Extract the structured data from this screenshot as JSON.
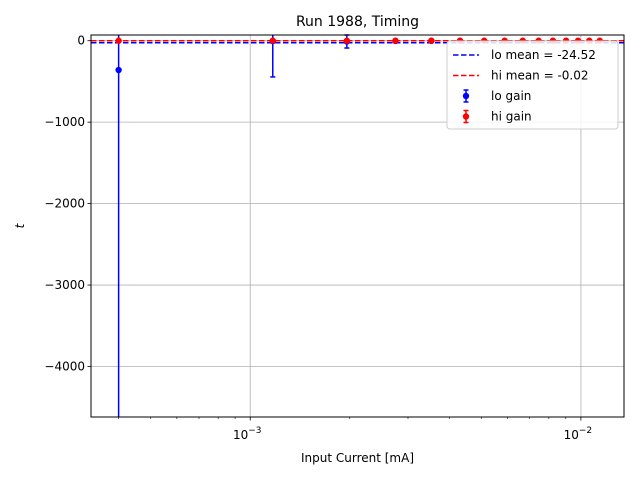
{
  "chart_data": {
    "type": "scatter",
    "title": "Run 1988, Timing",
    "xlabel": "Input Current [mA]",
    "ylabel": "t",
    "xscale": "log",
    "xlim": [
      0.00033,
      0.0135
    ],
    "ylim": [
      -4620,
      70
    ],
    "grid": true,
    "legend_position": "top-right",
    "x_ticks": [
      {
        "value": 0.001,
        "base": "10",
        "exp": "−3"
      },
      {
        "value": 0.01,
        "base": "10",
        "exp": "−2"
      }
    ],
    "y_ticks": [
      {
        "value": 0,
        "label": "0"
      },
      {
        "value": -1000,
        "label": "−1000"
      },
      {
        "value": -2000,
        "label": "−2000"
      },
      {
        "value": -3000,
        "label": "−3000"
      },
      {
        "value": -4000,
        "label": "−4000"
      }
    ],
    "hlines": [
      {
        "label": "lo mean = -24.52",
        "value": -24.52,
        "color": "#0000ff",
        "style": "dashed"
      },
      {
        "label": "hi mean = -0.02",
        "value": -0.02,
        "color": "#ff0000",
        "style": "dashed"
      }
    ],
    "series": [
      {
        "name": "lo gain",
        "color": "#0000ff",
        "points": [
          {
            "x": 0.0004,
            "y": -360,
            "err": 4600
          },
          {
            "x": 0.00117,
            "y": -5,
            "err": 440
          },
          {
            "x": 0.00196,
            "y": -10,
            "err": 80
          },
          {
            "x": 0.00275,
            "y": -3,
            "err": 10
          },
          {
            "x": 0.00353,
            "y": -2,
            "err": 5
          },
          {
            "x": 0.00431,
            "y": -1,
            "err": 3
          }
        ]
      },
      {
        "name": "hi gain",
        "color": "#ff0000",
        "points": [
          {
            "x": 0.0004,
            "y": 0,
            "err": 2
          },
          {
            "x": 0.00117,
            "y": 0,
            "err": 2
          },
          {
            "x": 0.00196,
            "y": 0,
            "err": 2
          },
          {
            "x": 0.00275,
            "y": 0,
            "err": 2
          },
          {
            "x": 0.00353,
            "y": 0,
            "err": 2
          },
          {
            "x": 0.00431,
            "y": 0,
            "err": 2
          },
          {
            "x": 0.0051,
            "y": 0,
            "err": 2
          },
          {
            "x": 0.00588,
            "y": 0,
            "err": 2
          },
          {
            "x": 0.00667,
            "y": 0,
            "err": 2
          },
          {
            "x": 0.00745,
            "y": 0,
            "err": 2
          },
          {
            "x": 0.00823,
            "y": 0,
            "err": 2
          },
          {
            "x": 0.00902,
            "y": 0,
            "err": 2
          },
          {
            "x": 0.0098,
            "y": 0,
            "err": 2
          },
          {
            "x": 0.0106,
            "y": 0,
            "err": 2
          },
          {
            "x": 0.0114,
            "y": 0,
            "err": 2
          }
        ]
      }
    ]
  }
}
